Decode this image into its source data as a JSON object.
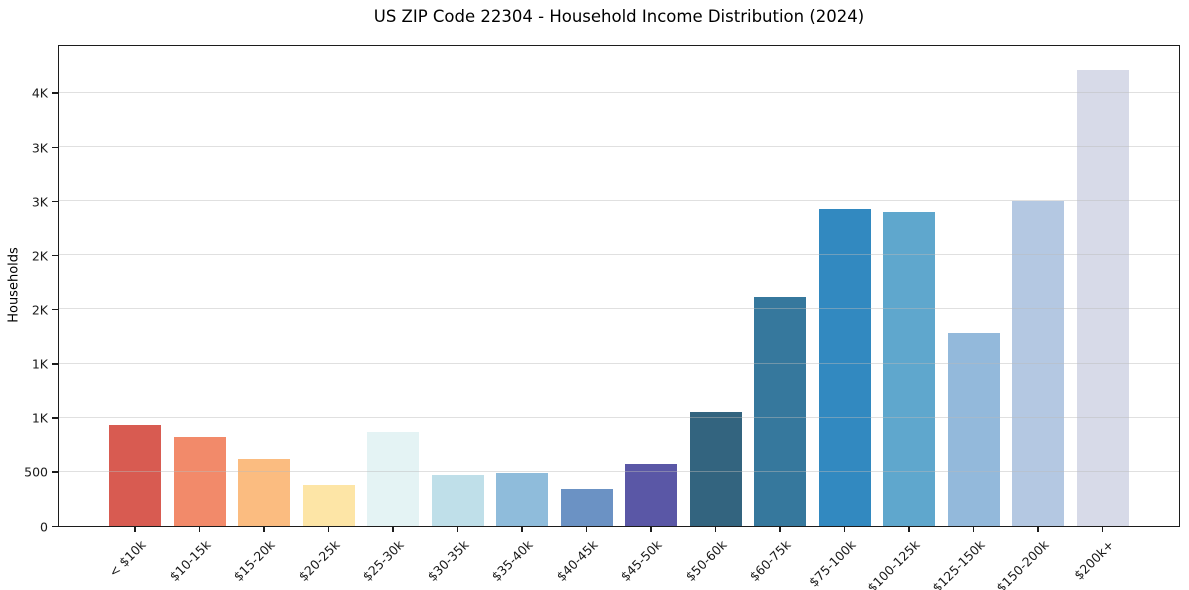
{
  "chart_data": {
    "type": "bar",
    "title": "US ZIP Code 22304 - Household Income Distribution (2024)",
    "xlabel": "",
    "ylabel": "Households",
    "categories": [
      "< $10k",
      "$10-15k",
      "$15-20k",
      "$20-25k",
      "$25-30k",
      "$30-35k",
      "$35-40k",
      "$40-45k",
      "$45-50k",
      "$50-60k",
      "$60-75k",
      "$75-100k",
      "$100-125k",
      "$125-150k",
      "$150-200k",
      "$200k+"
    ],
    "values": [
      930,
      820,
      620,
      380,
      865,
      470,
      490,
      345,
      570,
      1050,
      2115,
      2930,
      2900,
      1785,
      3005,
      4215
    ],
    "bar_colors": [
      "#d85b51",
      "#f28a6a",
      "#fbbc80",
      "#fde5a6",
      "#e4f3f4",
      "#bfdfe9",
      "#8fbcdb",
      "#6b92c4",
      "#5a57a6",
      "#33647f",
      "#36789d",
      "#3289c0",
      "#5fa7cd",
      "#93b9db",
      "#b4c8e2",
      "#d7dae8"
    ],
    "ylim": [
      0,
      4433
    ],
    "yticks": {
      "values": [
        0,
        500,
        1000,
        1500,
        2000,
        2500,
        3000,
        3500,
        4000
      ],
      "labels": [
        "0",
        "500",
        "1K",
        "1K",
        "2K",
        "2K",
        "3K",
        "3K",
        "4K"
      ]
    },
    "grid": "horizontal",
    "legend": "none",
    "background_color": "#ffffff",
    "axis_color": "#1c1c1c"
  }
}
